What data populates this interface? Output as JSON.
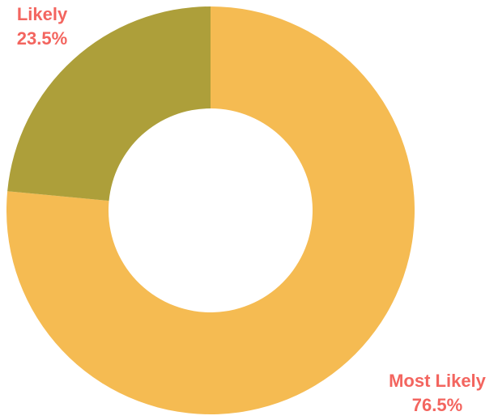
{
  "chart_data": {
    "type": "pie",
    "donut": true,
    "categories": [
      "Most Likely",
      "Likely"
    ],
    "values": [
      76.5,
      23.5
    ],
    "value_labels": [
      "76.5%",
      "23.5%"
    ],
    "colors": [
      "#F5BB52",
      "#AD9F3A"
    ],
    "label_color": "#F3655F",
    "legend": "none"
  }
}
